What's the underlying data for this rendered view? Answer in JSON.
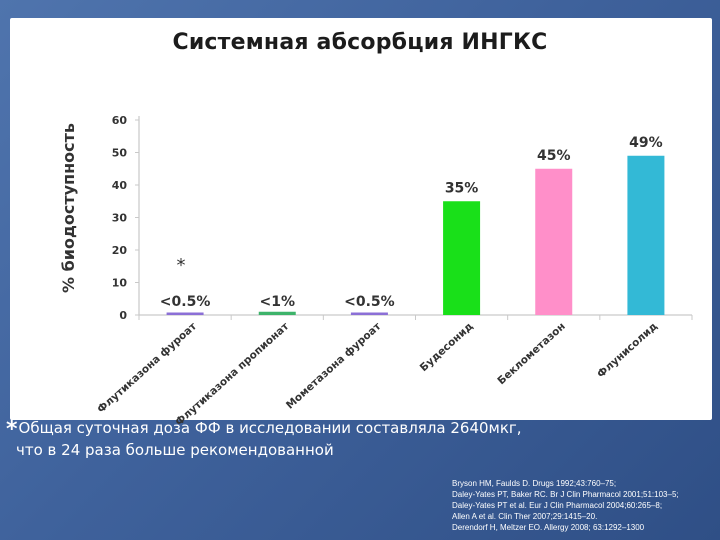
{
  "slide": {
    "title": "Системная абсорбция ИНГКС",
    "footnote_marker": "*",
    "footnote_line1": "Общая суточная доза ФФ в исследовании составляла 2640мкг,",
    "footnote_line2": "что в 24 раза больше рекомендованной",
    "references": [
      "Bryson HM, Faulds D. Drugs 1992;43:760–75;",
      "Daley-Yates PT, Baker RC. Br J Clin Pharmacol 2001;51:103–5;",
      "Daley-Yates PT et al. Eur J Clin Pharmacol 2004;60:265–8;",
      "Allen A et al. Clin Ther 2007;29:1415–20.",
      "Derendorf H, Meltzer EO. Allergy 2008; 63:1292–1300"
    ]
  },
  "colors": {
    "background": "#3f629c",
    "fluticasone_furoate": "#8b6fd6",
    "fluticasone_propionate": "#3db36a",
    "mometasone_furoate": "#8b6fd6",
    "budesonide": "#19e019",
    "beclomethasone": "#ff8fc9",
    "flunisolide": "#33b9d6"
  },
  "chart_data": {
    "type": "bar",
    "title": "",
    "xlabel": "",
    "ylabel": "% биодоступность",
    "ylim": [
      0,
      60
    ],
    "yticks": [
      0,
      10,
      20,
      30,
      40,
      50,
      60
    ],
    "grid": false,
    "categories": [
      "Флутиказона фуроат",
      "Флутиказона пропионат",
      "Мометазона фуроат",
      "Будесонид",
      "Беклометазон",
      "Флунисолид"
    ],
    "values": [
      0.5,
      1,
      0.5,
      35,
      45,
      49
    ],
    "data_labels": [
      "<0.5%",
      "<1%",
      "<0.5%",
      "35%",
      "45%",
      "49%"
    ],
    "annotation": "*"
  }
}
